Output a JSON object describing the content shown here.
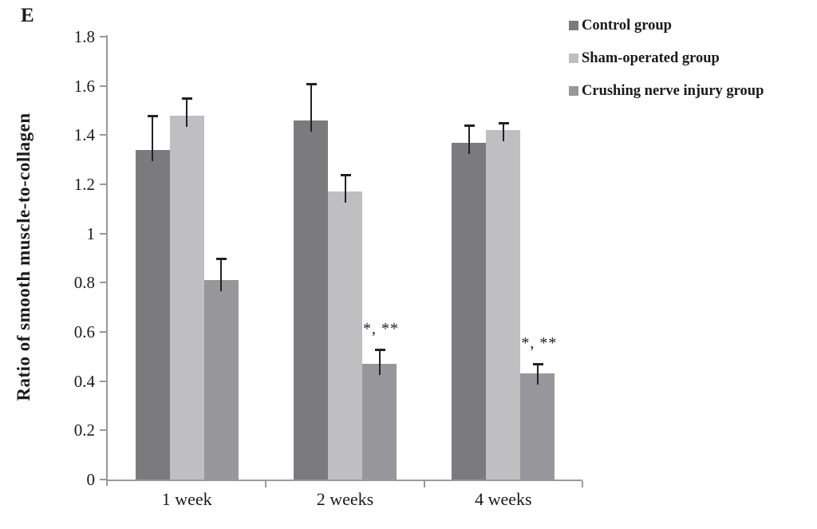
{
  "panel_label": "E",
  "chart_data": {
    "type": "bar",
    "title": "",
    "xlabel": "",
    "ylabel": "Ratio of smooth muscle-to-collagen",
    "categories": [
      "1 week",
      "2 weeks",
      "4 weeks"
    ],
    "ylim": [
      0,
      1.8
    ],
    "y_ticks": [
      0,
      0.2,
      0.4,
      0.6,
      0.8,
      1,
      1.2,
      1.4,
      1.6,
      1.8
    ],
    "y_tick_labels": [
      "0",
      "0.2",
      "0.4",
      "0.6",
      "0.8",
      "1",
      "1.2",
      "1.4",
      "1.6",
      "1.8"
    ],
    "grid": false,
    "legend_position": "top-right",
    "error_bars": "upper",
    "series": [
      {
        "name": "Control group",
        "color": "#7b7b7e",
        "values": [
          1.34,
          1.46,
          1.37
        ],
        "errors": [
          0.14,
          0.15,
          0.07
        ]
      },
      {
        "name": "Sham-operated group",
        "color": "#bfbfc2",
        "values": [
          1.48,
          1.17,
          1.42
        ],
        "errors": [
          0.07,
          0.07,
          0.03
        ]
      },
      {
        "name": "Crushing nerve injury group",
        "color": "#97979b",
        "values": [
          0.81,
          0.47,
          0.43
        ],
        "errors": [
          0.09,
          0.06,
          0.04
        ]
      }
    ],
    "annotations": [
      {
        "text": "*, **",
        "category": "2 weeks",
        "series": "Crushing nerve injury group"
      },
      {
        "text": "*, **",
        "category": "4 weeks",
        "series": "Crushing nerve injury group"
      }
    ]
  },
  "colors": {
    "axis": "#9a9a9e",
    "error_bar": "#222222",
    "text": "#1a1a1a",
    "background": "#ffffff"
  }
}
